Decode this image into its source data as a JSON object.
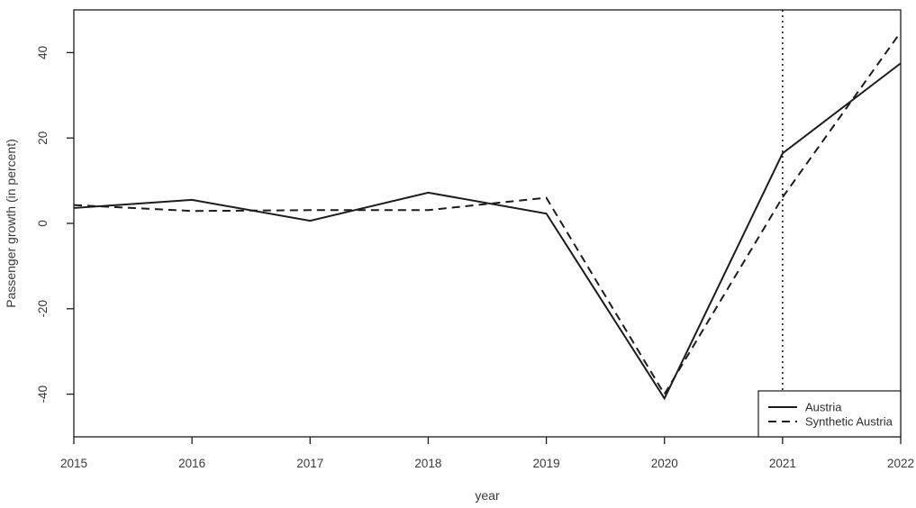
{
  "figure": {
    "background": "#ffffff",
    "line_color": "#1c1c1c",
    "text_color": "#3a3a3a"
  },
  "chart_data": {
    "type": "line",
    "title": "",
    "xlabel": "year",
    "ylabel": "Passenger growth (in percent)",
    "x": [
      2015,
      2016,
      2017,
      2018,
      2019,
      2020,
      2021,
      2022
    ],
    "series": [
      {
        "name": "Austria",
        "style": "solid",
        "values": [
          3.6,
          5.5,
          0.6,
          7.2,
          2.3,
          -41,
          16.4,
          37.5
        ]
      },
      {
        "name": "Synthetic Austria",
        "style": "dashed",
        "values": [
          4.3,
          2.9,
          3.1,
          3.1,
          6.0,
          -40,
          6.1,
          44.8
        ]
      }
    ],
    "x_ticks": [
      "2015",
      "2016",
      "2017",
      "2018",
      "2019",
      "2020",
      "2021",
      "2022"
    ],
    "y_ticks": [
      "-40",
      "-20",
      "0",
      "20",
      "40"
    ],
    "y_tick_values": [
      -40,
      -20,
      0,
      20,
      40
    ],
    "xlim": [
      2015,
      2022
    ],
    "ylim": [
      -50,
      50
    ],
    "grid": false,
    "vline": {
      "x": 2021,
      "style": "dotted"
    },
    "legend": {
      "position": "bottom-right",
      "entries": [
        "Austria",
        "Synthetic Austria"
      ]
    }
  }
}
